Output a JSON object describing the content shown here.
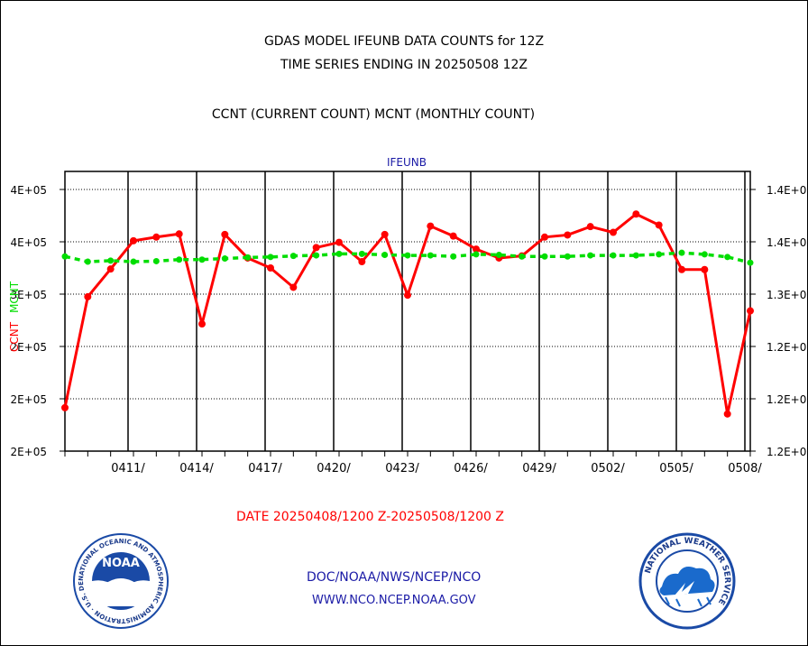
{
  "header": {
    "title_line1": "GDAS MODEL IFEUNB DATA COUNTS for 12Z",
    "title_line2": "TIME SERIES ENDING IN 20250508 12Z",
    "subtitle": "CCNT (CURRENT COUNT) MCNT (MONTHLY COUNT)"
  },
  "footer": {
    "date_range": "DATE 20250408/1200 Z-20250508/1200 Z",
    "org_line": "DOC/NOAA/NWS/NCEP/NCO",
    "url_line": "WWW.NCO.NCEP.NOAA.GOV"
  },
  "logos": {
    "noaa_label": "NOAA",
    "noaa_ring_text": "NATIONAL OCEANIC AND ATMOSPHERIC ADMINISTRATION · U.S. DEPARTMENT OF COMMERCE",
    "nws_ring_text": "NATIONAL WEATHER SERVICE"
  },
  "colors": {
    "ccnt": "#ff0000",
    "mcnt": "#00dd00",
    "title": "#000000",
    "legend": "#1a1aa6",
    "date_range": "#ff0000",
    "footer": "#1a1aa6"
  },
  "chart_data": {
    "type": "line",
    "legend_title": "IFEUNB",
    "ylabel_left": [
      "CCNT",
      "MCNT"
    ],
    "y_ticks_left": [
      "4E+05",
      "4E+05",
      "3E+05",
      "2E+05",
      "2E+05",
      "2E+05"
    ],
    "y_ticks_right": [
      "1.4E+0",
      "1.4E+0",
      "1.3E+0",
      "1.2E+0",
      "1.2E+0",
      "1.2E+0"
    ],
    "x_tick_labels": [
      "0411/",
      "0414/",
      "0417/",
      "0420/",
      "0423/",
      "0426/",
      "0429/",
      "0502/",
      "0505/",
      "0508/"
    ],
    "x_tick_days": [
      3,
      6,
      9,
      12,
      15,
      18,
      21,
      24,
      27,
      30
    ],
    "x_range_days": [
      0,
      30
    ],
    "y_range": [
      0,
      5
    ],
    "grid": true,
    "series": [
      {
        "name": "CCNT",
        "color": "#ff0000",
        "x": [
          0,
          1,
          2,
          3,
          4,
          5,
          6,
          7,
          8,
          9,
          10,
          11,
          12,
          13,
          14,
          15,
          16,
          17,
          18,
          19,
          20,
          21,
          22,
          23,
          24,
          25,
          26,
          27,
          28,
          29,
          30
        ],
        "values": [
          0.83,
          2.95,
          3.48,
          4.02,
          4.09,
          4.15,
          2.43,
          4.14,
          3.69,
          3.5,
          3.13,
          3.89,
          3.99,
          3.62,
          4.14,
          2.98,
          4.3,
          4.11,
          3.86,
          3.69,
          3.73,
          4.09,
          4.13,
          4.29,
          4.18,
          4.53,
          4.32,
          3.47,
          3.47,
          0.71,
          2.68
        ]
      },
      {
        "name": "MCNT",
        "color": "#00dd00",
        "x": [
          0,
          1,
          2,
          3,
          4,
          5,
          6,
          7,
          8,
          9,
          10,
          11,
          12,
          13,
          14,
          15,
          16,
          17,
          18,
          19,
          20,
          21,
          22,
          23,
          24,
          25,
          26,
          27,
          28,
          29,
          30
        ],
        "values": [
          3.72,
          3.62,
          3.64,
          3.62,
          3.63,
          3.66,
          3.66,
          3.68,
          3.7,
          3.71,
          3.73,
          3.74,
          3.77,
          3.77,
          3.75,
          3.74,
          3.74,
          3.72,
          3.76,
          3.75,
          3.72,
          3.72,
          3.72,
          3.74,
          3.74,
          3.74,
          3.76,
          3.79,
          3.76,
          3.71,
          3.6
        ]
      }
    ]
  }
}
